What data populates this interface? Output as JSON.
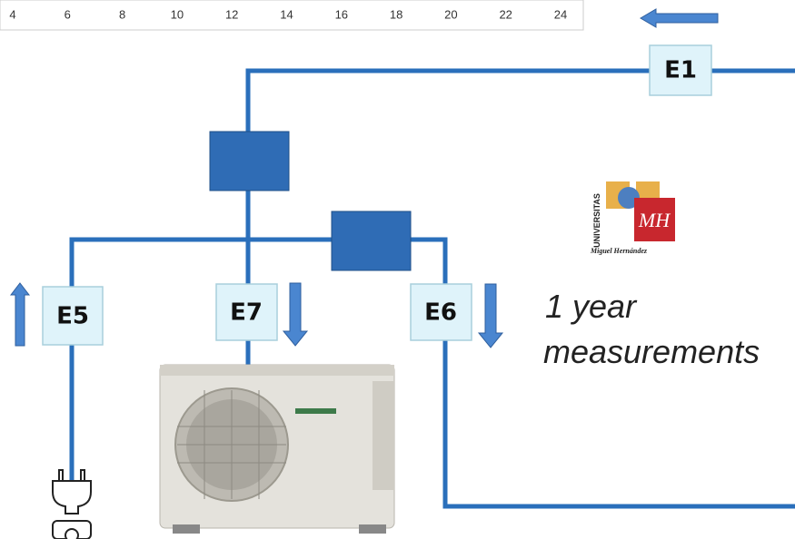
{
  "axis_ticks": [
    "4",
    "6",
    "8",
    "10",
    "12",
    "14",
    "16",
    "18",
    "20",
    "22",
    "24"
  ],
  "meters": {
    "e1": "E1",
    "e5": "E5",
    "e7": "E7",
    "e6": "E6"
  },
  "logo": {
    "top": "UNIVERSITAS",
    "bottom": "Miguel Hernández"
  },
  "caption": {
    "line1": "1 year",
    "line2": "measurements"
  }
}
